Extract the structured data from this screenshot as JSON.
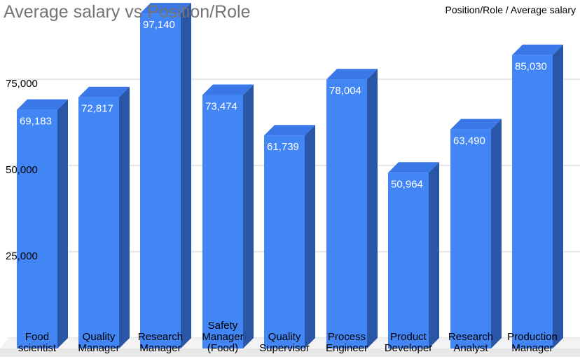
{
  "chart_data": {
    "type": "bar",
    "title": "Average salary vs Position/Role",
    "legend": "Position/Role / Average salary",
    "legend_position": "top-right",
    "categories": [
      [
        "Food",
        "scientist"
      ],
      [
        "Quality",
        "Manager"
      ],
      [
        "Research",
        "Manager"
      ],
      [
        "Safety",
        "Manager",
        "(Food)"
      ],
      [
        "Quality",
        "Supervisor"
      ],
      [
        "Process",
        "Engineer"
      ],
      [
        "Product",
        "Developer"
      ],
      [
        "Research",
        "Analyst"
      ],
      [
        "Production",
        "Manager"
      ]
    ],
    "series": [
      {
        "values": [
          69183,
          72817,
          97140,
          73474,
          61739,
          78004,
          50964,
          63490,
          85030
        ]
      }
    ],
    "value_labels": [
      "69,183",
      "72,817",
      "97,140",
      "73,474",
      "61,739",
      "78,004",
      "50,964",
      "63,490",
      "85,030"
    ],
    "y_ticks": [
      25000,
      50000,
      75000
    ],
    "y_tick_labels": [
      "25,000",
      "50,000",
      "75,000"
    ],
    "ylim": [
      0,
      100000
    ],
    "grid": true,
    "bar_style": "3d",
    "colors": {
      "front": "#4285f4",
      "side": "#2a56a8",
      "top": "#3b78e7",
      "grid": "#cccccc",
      "floor": "#e8e8e8"
    }
  }
}
